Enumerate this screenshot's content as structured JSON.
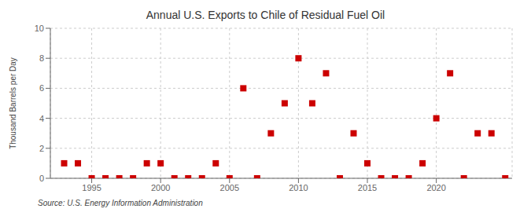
{
  "chart_data": {
    "type": "scatter",
    "title": "Annual U.S. Exports to Chile of Residual Fuel Oil",
    "ylabel": "Thousand Barrels per Day",
    "source": "Source: U.S. Energy Information Administration",
    "x": [
      1993,
      1994,
      1995,
      1996,
      1997,
      1998,
      1999,
      2000,
      2001,
      2002,
      2003,
      2004,
      2005,
      2006,
      2007,
      2008,
      2009,
      2010,
      2011,
      2012,
      2013,
      2014,
      2015,
      2016,
      2017,
      2018,
      2019,
      2020,
      2021,
      2022,
      2023,
      2024,
      2025
    ],
    "values": [
      1,
      1,
      0,
      0,
      0,
      0,
      1,
      1,
      0,
      0,
      0,
      1,
      0,
      6,
      0,
      3,
      5,
      8,
      5,
      7,
      0,
      3,
      1,
      0,
      0,
      0,
      1,
      4,
      7,
      0,
      3,
      3,
      0
    ],
    "color": "#cc0000",
    "marker": "square",
    "xlim": [
      1992,
      2025.5
    ],
    "xticks": [
      1995,
      2000,
      2005,
      2010,
      2015,
      2020
    ],
    "ylim": [
      0,
      10
    ],
    "yticks": [
      0,
      2,
      4,
      6,
      8,
      10
    ],
    "grid": true
  }
}
